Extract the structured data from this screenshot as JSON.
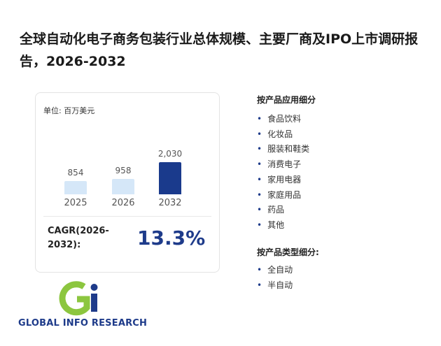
{
  "title": "全球自动化电子商务包装行业总体规模、主要厂商及IPO上市调研报告，2026-2032",
  "chart_data": {
    "type": "bar",
    "unit_label": "单位: 百万美元",
    "categories": [
      "2025",
      "2026",
      "2032"
    ],
    "values": [
      854,
      958,
      2030
    ],
    "value_labels": [
      "854",
      "958",
      "2,030"
    ],
    "colors": [
      "#d5e7f8",
      "#d5e7f8",
      "#1a3a8c"
    ]
  },
  "cagr": {
    "label": "CAGR(2026-2032):",
    "value": "13.3%"
  },
  "application": {
    "heading": "按产品应用细分",
    "items": [
      "食品饮料",
      "化妆品",
      "服装和鞋类",
      "消费电子",
      "家用电器",
      "家庭用品",
      "药品",
      "其他"
    ]
  },
  "product_type": {
    "heading": "按产品类型细分:",
    "items": [
      "全自动",
      "半自动"
    ]
  },
  "logo_text": "GLOBAL INFO RESEARCH"
}
